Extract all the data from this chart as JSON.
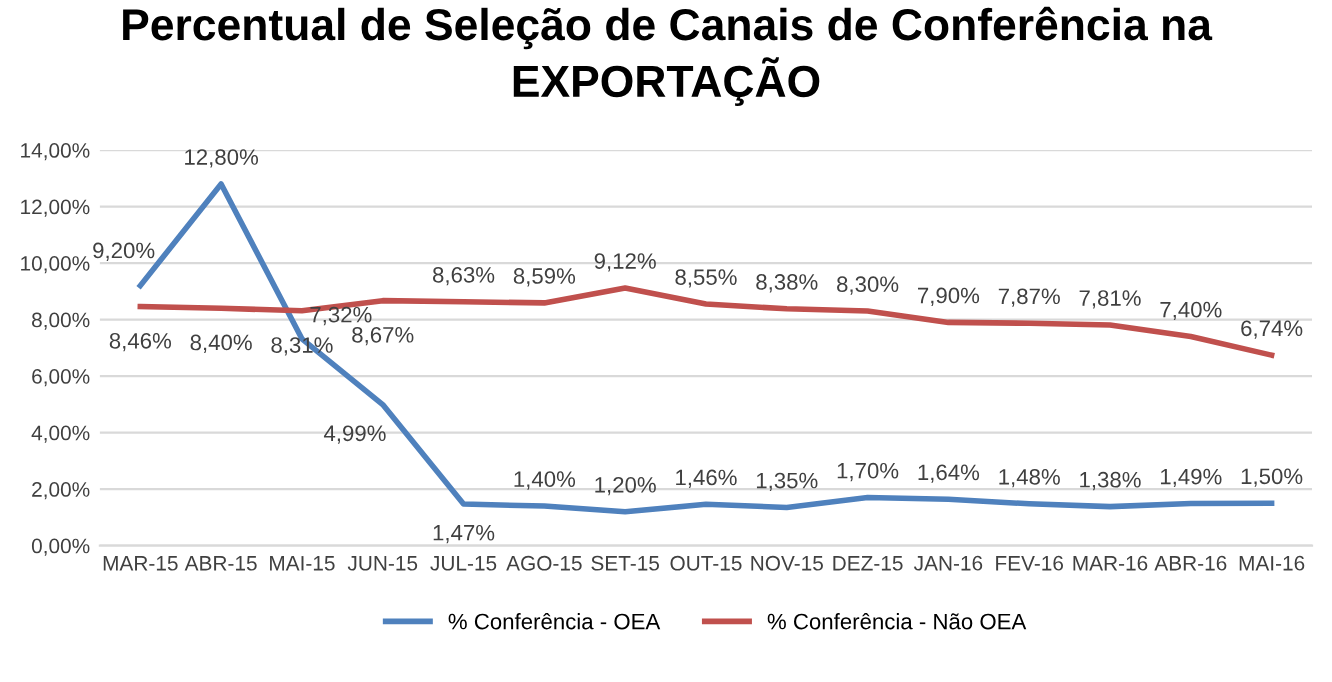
{
  "chart_data": {
    "type": "line",
    "title": "Percentual de Seleção de Canais de Conferência na EXPORTAÇÃO",
    "categories": [
      "MAR-15",
      "ABR-15",
      "MAI-15",
      "JUN-15",
      "JUL-15",
      "AGO-15",
      "SET-15",
      "OUT-15",
      "NOV-15",
      "DEZ-15",
      "JAN-16",
      "FEV-16",
      "MAR-16",
      "ABR-16",
      "MAI-16"
    ],
    "series": [
      {
        "name": "% Conferência - OEA",
        "color": "#4f81bd",
        "values": [
          9.2,
          12.8,
          7.32,
          4.99,
          1.47,
          1.4,
          1.2,
          1.46,
          1.35,
          1.7,
          1.64,
          1.48,
          1.38,
          1.49,
          1.5
        ],
        "value_labels": [
          "9,20%",
          "12,80%",
          "7,32%",
          "4,99%",
          "1,47%",
          "1,40%",
          "1,20%",
          "1,46%",
          "1,35%",
          "1,70%",
          "1,64%",
          "1,48%",
          "1,38%",
          "1,49%",
          "1,50%"
        ]
      },
      {
        "name": "% Conferência - Não OEA",
        "color": "#c0504d",
        "values": [
          8.46,
          8.4,
          8.31,
          8.67,
          8.63,
          8.59,
          9.12,
          8.55,
          8.38,
          8.3,
          7.9,
          7.87,
          7.81,
          7.4,
          6.74
        ],
        "value_labels": [
          "8,46%",
          "8,40%",
          "8,31%",
          "8,67%",
          "8,63%",
          "8,59%",
          "9,12%",
          "8,55%",
          "8,38%",
          "8,30%",
          "7,90%",
          "7,87%",
          "7,81%",
          "7,40%",
          "6,74%"
        ]
      }
    ],
    "ylim": [
      0,
      14
    ],
    "yticks": [
      {
        "value": 0,
        "label": "0,00%"
      },
      {
        "value": 2,
        "label": "2,00%"
      },
      {
        "value": 4,
        "label": "4,00%"
      },
      {
        "value": 6,
        "label": "6,00%"
      },
      {
        "value": 8,
        "label": "8,00%"
      },
      {
        "value": 10,
        "label": "10,00%"
      },
      {
        "value": 12,
        "label": "12,00%"
      },
      {
        "value": 14,
        "label": "14,00%"
      }
    ],
    "grid": "y",
    "legend": "bottom",
    "marker": "none",
    "line_style": "solid"
  }
}
